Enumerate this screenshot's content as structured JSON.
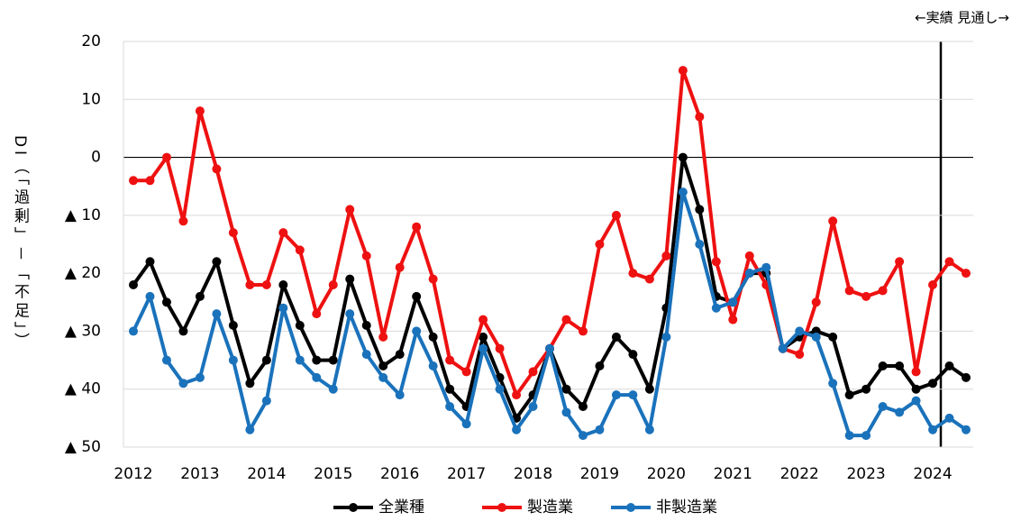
{
  "chart_data": {
    "type": "line",
    "y_axis_label": "DI（「過剰」－「不足」）",
    "annotation": "←実績 見通し→",
    "categories": [
      "2012",
      null,
      null,
      null,
      "2013",
      null,
      null,
      null,
      "2014",
      null,
      null,
      null,
      "2015",
      null,
      null,
      null,
      "2016",
      null,
      null,
      null,
      "2017",
      null,
      null,
      null,
      "2018",
      null,
      null,
      null,
      "2019",
      null,
      null,
      null,
      "2020",
      null,
      null,
      null,
      "2021",
      null,
      null,
      null,
      "2022",
      null,
      null,
      null,
      "2023",
      null,
      null,
      null,
      "2024",
      null,
      null
    ],
    "series": [
      {
        "name": "全業種",
        "color": "#000000",
        "values": [
          -22,
          -18,
          -25,
          -30,
          -24,
          -18,
          -29,
          -39,
          -35,
          -22,
          -29,
          -35,
          -35,
          -21,
          -29,
          -36,
          -34,
          -24,
          -31,
          -40,
          -43,
          -31,
          -38,
          -45,
          -41,
          -33,
          -40,
          -43,
          -36,
          -31,
          -34,
          -40,
          -26,
          0,
          -9,
          -24,
          -25,
          -20,
          -20,
          -33,
          -31,
          -30,
          -31,
          -41,
          -40,
          -36,
          -36,
          -40,
          -39,
          -36,
          -38
        ]
      },
      {
        "name": "製造業",
        "color": "#ee1111",
        "values": [
          -4,
          -4,
          0,
          -11,
          8,
          -2,
          -13,
          -22,
          -22,
          -13,
          -16,
          -27,
          -22,
          -9,
          -17,
          -31,
          -19,
          -12,
          -21,
          -35,
          -37,
          -28,
          -33,
          -41,
          -37,
          -33,
          -28,
          -30,
          -15,
          -10,
          -20,
          -21,
          -17,
          15,
          7,
          -18,
          -28,
          -17,
          -22,
          -33,
          -34,
          -25,
          -11,
          -23,
          -24,
          -23,
          -18,
          -37,
          -22,
          -18,
          -20
        ]
      },
      {
        "name": "非製造業",
        "color": "#1a72bb",
        "values": [
          -30,
          -24,
          -35,
          -39,
          -38,
          -27,
          -35,
          -47,
          -42,
          -26,
          -35,
          -38,
          -40,
          -27,
          -34,
          -38,
          -41,
          -30,
          -36,
          -43,
          -46,
          -33,
          -40,
          -47,
          -43,
          -33,
          -44,
          -48,
          -47,
          -41,
          -41,
          -47,
          -31,
          -6,
          -15,
          -26,
          -25,
          -20,
          -19,
          -33,
          -30,
          -31,
          -39,
          -48,
          -48,
          -43,
          -44,
          -42,
          -47,
          -45,
          -47
        ]
      }
    ],
    "ylim": [
      -50,
      20
    ],
    "yticks": [
      {
        "value": -50,
        "label": "▲ 50"
      },
      {
        "value": -40,
        "label": "▲ 40"
      },
      {
        "value": -30,
        "label": "▲ 30"
      },
      {
        "value": -20,
        "label": "▲ 20"
      },
      {
        "value": -10,
        "label": "▲ 10"
      },
      0,
      10,
      20
    ],
    "grid": true,
    "legend": "bottom"
  }
}
